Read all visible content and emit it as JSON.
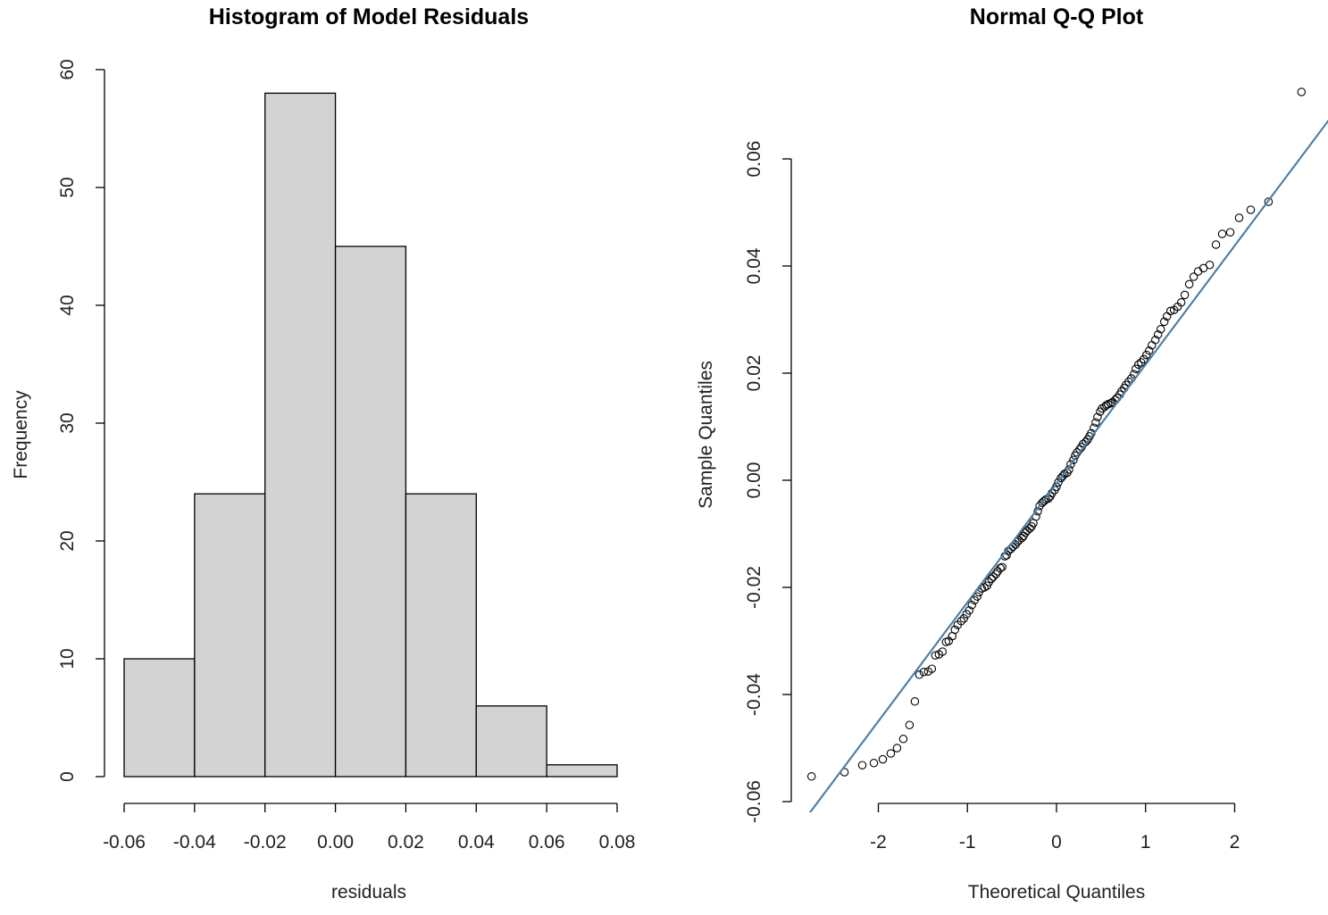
{
  "chart_data": [
    {
      "type": "bar",
      "title": "Histogram of Model Residuals",
      "xlabel": "residuals",
      "ylabel": "Frequency",
      "bin_edges": [
        -0.06,
        -0.04,
        -0.02,
        0.0,
        0.02,
        0.04,
        0.06,
        0.08
      ],
      "values": [
        10,
        24,
        58,
        45,
        24,
        6,
        1
      ],
      "xlim": [
        -0.06,
        0.08
      ],
      "ylim": [
        0,
        60
      ],
      "x_ticks": [
        "-0.06",
        "-0.04",
        "-0.02",
        "0.00",
        "0.02",
        "0.04",
        "0.06",
        "0.08"
      ],
      "y_ticks": [
        "0",
        "10",
        "20",
        "30",
        "40",
        "50",
        "60"
      ],
      "bar_fill": "#d3d3d3",
      "bar_stroke": "#000000"
    },
    {
      "type": "scatter",
      "title": "Normal Q-Q Plot",
      "xlabel": "Theoretical Quantiles",
      "ylabel": "Sample Quantiles",
      "x_ticks": [
        "-2",
        "-1",
        "0",
        "1",
        "2"
      ],
      "y_ticks": [
        "-0.06",
        "-0.04",
        "-0.02",
        "0.00",
        "0.02",
        "0.04",
        "0.06"
      ],
      "reference_line": {
        "intercept": -0.0006,
        "slope": 0.0222,
        "color": "#4f81a6"
      },
      "points": [
        [
          -2.75,
          -0.0553
        ],
        [
          -2.38,
          -0.0545
        ],
        [
          -2.18,
          -0.0532
        ],
        [
          -2.05,
          -0.0528
        ],
        [
          -1.95,
          -0.0521
        ],
        [
          -1.86,
          -0.051
        ],
        [
          -1.79,
          -0.05
        ],
        [
          -1.72,
          -0.0483
        ],
        [
          -1.65,
          -0.0457
        ],
        [
          -1.59,
          -0.0413
        ],
        [
          -1.54,
          -0.0363
        ],
        [
          -1.49,
          -0.0358
        ],
        [
          -1.44,
          -0.0357
        ],
        [
          -1.4,
          -0.0352
        ],
        [
          -1.36,
          -0.0327
        ],
        [
          -1.32,
          -0.0325
        ],
        [
          -1.28,
          -0.032
        ],
        [
          -1.24,
          -0.0302
        ],
        [
          -1.21,
          -0.03
        ],
        [
          -1.17,
          -0.0291
        ],
        [
          -1.14,
          -0.0279
        ],
        [
          -1.11,
          -0.027
        ],
        [
          -1.07,
          -0.0263
        ],
        [
          -1.04,
          -0.0258
        ],
        [
          -1.01,
          -0.025
        ],
        [
          -0.98,
          -0.0243
        ],
        [
          -0.95,
          -0.0233
        ],
        [
          -0.92,
          -0.0224
        ],
        [
          -0.89,
          -0.0217
        ],
        [
          -0.87,
          -0.0209
        ],
        [
          -0.84,
          -0.0202
        ],
        [
          -0.81,
          -0.02
        ],
        [
          -0.78,
          -0.0197
        ],
        [
          -0.76,
          -0.019
        ],
        [
          -0.73,
          -0.0184
        ],
        [
          -0.71,
          -0.018
        ],
        [
          -0.68,
          -0.0175
        ],
        [
          -0.66,
          -0.017
        ],
        [
          -0.63,
          -0.0164
        ],
        [
          -0.61,
          -0.0162
        ],
        [
          -0.58,
          -0.0142
        ],
        [
          -0.56,
          -0.014
        ],
        [
          -0.54,
          -0.0132
        ],
        [
          -0.51,
          -0.0128
        ],
        [
          -0.49,
          -0.0124
        ],
        [
          -0.46,
          -0.012
        ],
        [
          -0.44,
          -0.0115
        ],
        [
          -0.42,
          -0.0112
        ],
        [
          -0.39,
          -0.0108
        ],
        [
          -0.37,
          -0.0104
        ],
        [
          -0.35,
          -0.0098
        ],
        [
          -0.33,
          -0.0094
        ],
        [
          -0.3,
          -0.009
        ],
        [
          -0.28,
          -0.0086
        ],
        [
          -0.26,
          -0.008
        ],
        [
          -0.23,
          -0.0068
        ],
        [
          -0.21,
          -0.0058
        ],
        [
          -0.19,
          -0.0048
        ],
        [
          -0.16,
          -0.0042
        ],
        [
          -0.14,
          -0.0039
        ],
        [
          -0.12,
          -0.0036
        ],
        [
          -0.09,
          -0.0034
        ],
        [
          -0.07,
          -0.003
        ],
        [
          -0.05,
          -0.0024
        ],
        [
          -0.02,
          -0.0018
        ],
        [
          0.0,
          -0.0012
        ],
        [
          0.02,
          -0.0004
        ],
        [
          0.05,
          0.0004
        ],
        [
          0.07,
          0.0008
        ],
        [
          0.09,
          0.0012
        ],
        [
          0.12,
          0.0014
        ],
        [
          0.14,
          0.002
        ],
        [
          0.16,
          0.003
        ],
        [
          0.19,
          0.0038
        ],
        [
          0.21,
          0.0046
        ],
        [
          0.23,
          0.0052
        ],
        [
          0.26,
          0.0058
        ],
        [
          0.28,
          0.0062
        ],
        [
          0.3,
          0.0068
        ],
        [
          0.33,
          0.0072
        ],
        [
          0.35,
          0.0076
        ],
        [
          0.37,
          0.0082
        ],
        [
          0.39,
          0.0088
        ],
        [
          0.42,
          0.0098
        ],
        [
          0.44,
          0.0108
        ],
        [
          0.46,
          0.0118
        ],
        [
          0.49,
          0.0128
        ],
        [
          0.51,
          0.0134
        ],
        [
          0.54,
          0.0137
        ],
        [
          0.56,
          0.014
        ],
        [
          0.58,
          0.0142
        ],
        [
          0.61,
          0.0144
        ],
        [
          0.63,
          0.0146
        ],
        [
          0.66,
          0.015
        ],
        [
          0.68,
          0.0154
        ],
        [
          0.71,
          0.016
        ],
        [
          0.73,
          0.0166
        ],
        [
          0.76,
          0.0172
        ],
        [
          0.78,
          0.0178
        ],
        [
          0.81,
          0.0184
        ],
        [
          0.84,
          0.019
        ],
        [
          0.87,
          0.0198
        ],
        [
          0.89,
          0.0208
        ],
        [
          0.92,
          0.0216
        ],
        [
          0.95,
          0.022
        ],
        [
          0.98,
          0.0226
        ],
        [
          1.01,
          0.0234
        ],
        [
          1.04,
          0.0242
        ],
        [
          1.07,
          0.0252
        ],
        [
          1.11,
          0.0262
        ],
        [
          1.14,
          0.0272
        ],
        [
          1.17,
          0.0282
        ],
        [
          1.21,
          0.0296
        ],
        [
          1.24,
          0.0306
        ],
        [
          1.28,
          0.0316
        ],
        [
          1.32,
          0.0318
        ],
        [
          1.36,
          0.0324
        ],
        [
          1.4,
          0.0332
        ],
        [
          1.44,
          0.0346
        ],
        [
          1.49,
          0.0366
        ],
        [
          1.54,
          0.038
        ],
        [
          1.59,
          0.039
        ],
        [
          1.65,
          0.0396
        ],
        [
          1.72,
          0.0402
        ],
        [
          1.79,
          0.044
        ],
        [
          1.86,
          0.046
        ],
        [
          1.95,
          0.0463
        ],
        [
          2.05,
          0.049
        ],
        [
          2.18,
          0.0505
        ],
        [
          2.38,
          0.052
        ],
        [
          2.75,
          0.0725
        ]
      ],
      "point_stroke": "#000000"
    }
  ]
}
